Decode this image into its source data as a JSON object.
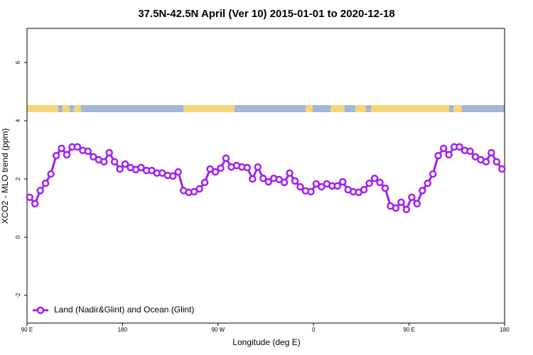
{
  "chart_data": {
    "type": "line",
    "title": "37.5N-42.5N April (Ver 10)   2015-01-01 to 2020-12-18",
    "x_label": "Longitude (deg E)",
    "y_label": "XCO2 - MLO trend (ppm)",
    "xlim": [
      90,
      540
    ],
    "ylim": [
      -2.95,
      7.17
    ],
    "xticks": [
      {
        "value": 90,
        "label": "90 E"
      },
      180,
      {
        "value": 270,
        "label": "90 W"
      },
      {
        "value": 360,
        "label": "0"
      },
      {
        "value": 450,
        "label": "90 E"
      },
      {
        "value": 540,
        "label": "180"
      }
    ],
    "yticks": [
      -2,
      0,
      2,
      4,
      6
    ],
    "legend": "bottom-left",
    "x": [
      92.5,
      97.5,
      102.5,
      107.5,
      112.5,
      117.5,
      122.5,
      127.5,
      132.5,
      137.5,
      142.5,
      147.5,
      152.5,
      157.5,
      162.5,
      167.5,
      172.5,
      177.5,
      182.5,
      187.5,
      192.5,
      197.5,
      202.5,
      207.5,
      212.5,
      217.5,
      222.5,
      227.5,
      232.5,
      237.5,
      242.5,
      247.5,
      252.5,
      257.5,
      262.5,
      267.5,
      272.5,
      277.5,
      282.5,
      287.5,
      292.5,
      297.5,
      302.5,
      307.5,
      312.5,
      317.5,
      322.5,
      327.5,
      332.5,
      337.5,
      342.5,
      347.5,
      352.5,
      357.5,
      362.5,
      367.5,
      372.5,
      377.5,
      382.5,
      387.5,
      392.5,
      397.5,
      402.5,
      407.5,
      412.5,
      417.5,
      422.5,
      427.5,
      432.5,
      437.5,
      442.5,
      447.5,
      452.5,
      457.5,
      462.5,
      467.5,
      472.5,
      477.5,
      482.5,
      487.5,
      492.5,
      497.5,
      502.5,
      507.5,
      512.5,
      517.5,
      522.5,
      527.5,
      532.5,
      537.5
    ],
    "series": [
      {
        "name": "Land (Nadir&Glint) and Ocean (Glint)",
        "color": "#a020f0",
        "values": [
          1.37,
          1.15,
          1.6,
          1.85,
          2.17,
          2.8,
          3.05,
          2.83,
          3.1,
          3.1,
          2.98,
          2.95,
          2.76,
          2.66,
          2.59,
          2.9,
          2.59,
          2.34,
          2.51,
          2.39,
          2.32,
          2.39,
          2.29,
          2.29,
          2.2,
          2.2,
          2.12,
          2.1,
          2.24,
          1.6,
          1.54,
          1.56,
          1.66,
          1.88,
          2.34,
          2.24,
          2.37,
          2.71,
          2.41,
          2.46,
          2.41,
          2.39,
          2.0,
          2.41,
          2.02,
          1.9,
          2.02,
          1.98,
          1.88,
          2.2,
          1.93,
          1.73,
          1.59,
          1.56,
          1.83,
          1.73,
          1.83,
          1.76,
          1.76,
          1.9,
          1.63,
          1.56,
          1.54,
          1.63,
          1.85,
          2.02,
          1.88,
          1.68,
          1.07,
          1.0,
          1.2,
          0.95,
          1.37,
          1.15,
          1.6,
          1.85,
          2.17,
          2.8,
          3.05,
          2.83,
          3.1,
          3.1,
          2.98,
          2.95,
          2.76,
          2.66,
          2.59,
          2.9,
          2.59,
          2.34
        ]
      }
    ]
  }
}
